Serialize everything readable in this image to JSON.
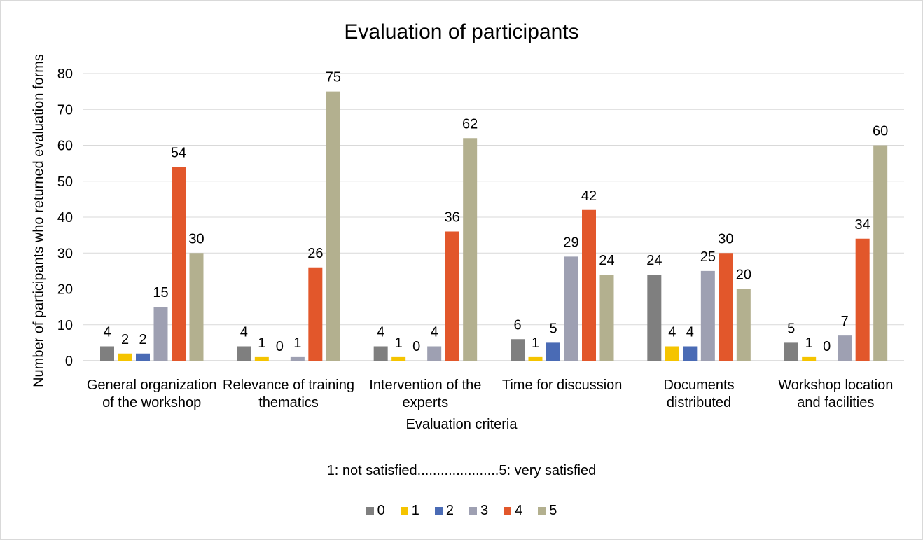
{
  "chart_data": {
    "type": "bar",
    "title": "Evaluation of participants",
    "xlabel": "Evaluation criteria",
    "ylabel": "Number of participants who returned evaluation forms",
    "note": "1: not satisfied.....................5: very satisfied",
    "categories": [
      [
        "General organization",
        "of the workshop"
      ],
      [
        "Relevance of training",
        "thematics"
      ],
      [
        "Intervention of the",
        "experts"
      ],
      [
        "Time for discussion"
      ],
      [
        "Documents",
        "distributed"
      ],
      [
        "Workshop location",
        "and facilities"
      ]
    ],
    "series": [
      {
        "name": "0",
        "color": "#7f7f7f",
        "values": [
          4,
          4,
          4,
          6,
          24,
          5
        ]
      },
      {
        "name": "1",
        "color": "#f5c400",
        "values": [
          2,
          1,
          1,
          1,
          4,
          1
        ]
      },
      {
        "name": "2",
        "color": "#4a6bb5",
        "values": [
          2,
          0,
          0,
          5,
          4,
          0
        ]
      },
      {
        "name": "3",
        "color": "#9ea0b2",
        "values": [
          15,
          1,
          4,
          29,
          25,
          7
        ]
      },
      {
        "name": "4",
        "color": "#e2572b",
        "values": [
          54,
          26,
          36,
          42,
          30,
          34
        ]
      },
      {
        "name": "5",
        "color": "#b3b08f",
        "values": [
          30,
          75,
          62,
          24,
          20,
          60
        ]
      }
    ],
    "ylim": [
      0,
      80
    ],
    "yticks": [
      0,
      10,
      20,
      30,
      40,
      50,
      60,
      70,
      80
    ],
    "grid": true,
    "legend_position": "bottom"
  }
}
